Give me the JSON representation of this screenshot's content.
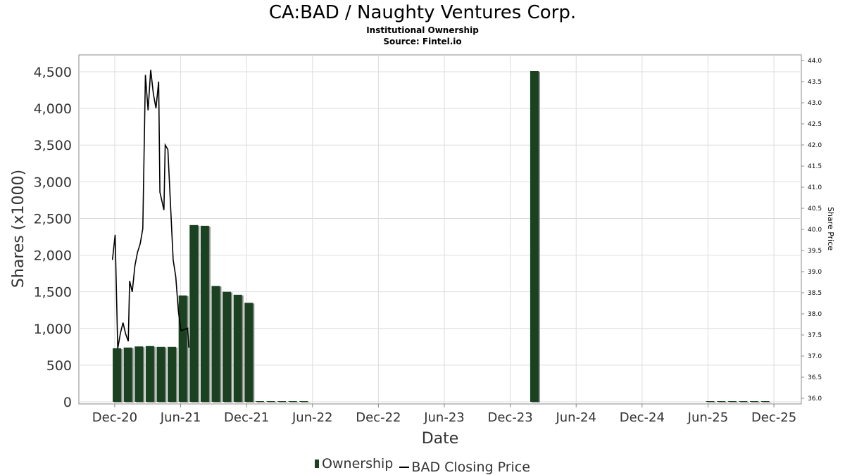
{
  "header": {
    "title": "CA:BAD / Naughty Ventures Corp.",
    "subtitle": "Institutional Ownership",
    "source": "Source: Fintel.io"
  },
  "legend": {
    "ownership": "Ownership",
    "price": "BAD Closing Price"
  },
  "colors": {
    "bar": "#1a4220",
    "shadow": "#8a8a8a",
    "line": "#000000",
    "grid": "#dddddd"
  },
  "chart_data": {
    "type": "bar",
    "title": "CA:BAD / Naughty Ventures Corp.",
    "xlabel": "Date",
    "ylabel": "Shares (x1000)",
    "y2label": "Share Price",
    "ylim": [
      0,
      4700
    ],
    "y2lim": [
      35.95,
      44.15
    ],
    "xlim_decimal_year": [
      2020.645,
      2026.125
    ],
    "x_ticks": [
      {
        "label": "Dec-20",
        "x": 2020.917
      },
      {
        "label": "Jun-21",
        "x": 2021.417
      },
      {
        "label": "Dec-21",
        "x": 2021.917
      },
      {
        "label": "Jun-22",
        "x": 2022.417
      },
      {
        "label": "Dec-22",
        "x": 2022.917
      },
      {
        "label": "Jun-23",
        "x": 2023.417
      },
      {
        "label": "Dec-23",
        "x": 2023.917
      },
      {
        "label": "Jun-24",
        "x": 2024.417
      },
      {
        "label": "Dec-24",
        "x": 2024.917
      },
      {
        "label": "Jun-25",
        "x": 2025.417
      },
      {
        "label": "Dec-25",
        "x": 2025.917
      }
    ],
    "y_ticks": [
      {
        "label": "0",
        "v": 0
      },
      {
        "label": "500",
        "v": 500
      },
      {
        "label": "1,000",
        "v": 1000
      },
      {
        "label": "1,500",
        "v": 1500
      },
      {
        "label": "2,000",
        "v": 2000
      },
      {
        "label": "2,500",
        "v": 2500
      },
      {
        "label": "3,000",
        "v": 3000
      },
      {
        "label": "3,500",
        "v": 3500
      },
      {
        "label": "4,000",
        "v": 4000
      },
      {
        "label": "4,500",
        "v": 4500
      }
    ],
    "y2_ticks": [
      "36.0",
      "36.5",
      "37.0",
      "37.5",
      "38.0",
      "38.5",
      "39.0",
      "39.5",
      "40.0",
      "40.5",
      "41.0",
      "41.5",
      "42.0",
      "42.5",
      "43.0",
      "43.5",
      "44.0"
    ],
    "series": [
      {
        "name": "Ownership",
        "type": "bar",
        "points": [
          [
            "2020-12",
            730
          ],
          [
            "2021-01",
            740
          ],
          [
            "2021-02",
            755
          ],
          [
            "2021-03",
            760
          ],
          [
            "2021-04",
            750
          ],
          [
            "2021-05",
            750
          ],
          [
            "2021-06",
            1450
          ],
          [
            "2021-07",
            2410
          ],
          [
            "2021-08",
            2400
          ],
          [
            "2021-09",
            1580
          ],
          [
            "2021-10",
            1500
          ],
          [
            "2021-11",
            1460
          ],
          [
            "2021-12",
            1350
          ],
          [
            "2022-01",
            5
          ],
          [
            "2022-02",
            5
          ],
          [
            "2022-03",
            5
          ],
          [
            "2022-04",
            5
          ],
          [
            "2022-05",
            5
          ],
          [
            "2024-02",
            4510
          ],
          [
            "2025-06",
            5
          ],
          [
            "2025-07",
            5
          ],
          [
            "2025-08",
            5
          ],
          [
            "2025-09",
            5
          ],
          [
            "2025-10",
            5
          ],
          [
            "2025-11",
            5
          ]
        ]
      },
      {
        "name": "BAD Closing Price",
        "type": "line",
        "points": [
          [
            2020.9,
            39.28
          ],
          [
            2020.92,
            39.87
          ],
          [
            2020.94,
            37.18
          ],
          [
            2020.96,
            37.54
          ],
          [
            2020.98,
            37.79
          ],
          [
            2021.0,
            37.52
          ],
          [
            2021.02,
            37.35
          ],
          [
            2021.03,
            38.78
          ],
          [
            2021.05,
            38.52
          ],
          [
            2021.07,
            39.14
          ],
          [
            2021.09,
            39.46
          ],
          [
            2021.11,
            39.66
          ],
          [
            2021.13,
            40.02
          ],
          [
            2021.15,
            43.66
          ],
          [
            2021.17,
            42.82
          ],
          [
            2021.19,
            43.78
          ],
          [
            2021.21,
            43.21
          ],
          [
            2021.23,
            42.87
          ],
          [
            2021.25,
            43.5
          ],
          [
            2021.26,
            40.88
          ],
          [
            2021.29,
            40.46
          ],
          [
            2021.3,
            42.0
          ],
          [
            2021.32,
            41.89
          ],
          [
            2021.34,
            40.6
          ],
          [
            2021.36,
            39.28
          ],
          [
            2021.38,
            38.88
          ],
          [
            2021.4,
            38.05
          ],
          [
            2021.42,
            37.6
          ],
          [
            2021.47,
            37.66
          ],
          [
            2021.48,
            37.2
          ]
        ]
      }
    ]
  }
}
